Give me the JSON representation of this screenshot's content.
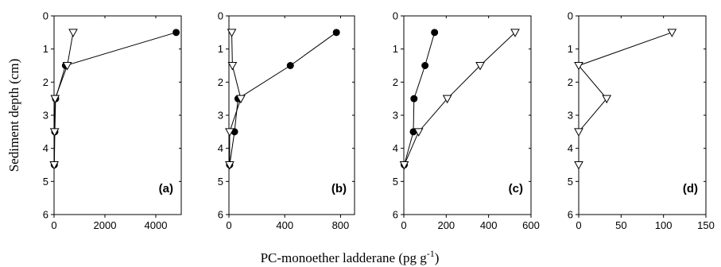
{
  "chart_data": {
    "type": "scatter",
    "xlabel": "PC-monoether ladderane (pg g",
    "xlabel_sup": "-1",
    "xlabel_end": ")",
    "ylabel": "Sediment depth (cm)",
    "ylim": [
      0,
      6
    ],
    "y_ticks": [
      "0",
      "1",
      "2",
      "3",
      "4",
      "5",
      "6"
    ],
    "legend": "none",
    "panels": [
      {
        "label": "(a)",
        "xlim": [
          0,
          5000
        ],
        "x_ticks": [
          0,
          2000,
          4000
        ],
        "series": [
          {
            "marker": "filled-circle",
            "points": [
              [
                4800,
                0.5
              ],
              [
                450,
                1.5
              ],
              [
                60,
                2.5
              ],
              [
                30,
                3.5
              ],
              [
                10,
                4.5
              ]
            ]
          },
          {
            "marker": "open-triangle-down",
            "points": [
              [
                750,
                0.5
              ],
              [
                520,
                1.5
              ],
              [
                40,
                2.5
              ],
              [
                20,
                3.5
              ],
              [
                5,
                4.5
              ]
            ]
          }
        ]
      },
      {
        "label": "(b)",
        "xlim": [
          0,
          900
        ],
        "x_ticks": [
          0,
          400,
          800
        ],
        "series": [
          {
            "marker": "filled-circle",
            "points": [
              [
                770,
                0.5
              ],
              [
                440,
                1.5
              ],
              [
                65,
                2.5
              ],
              [
                40,
                3.5
              ],
              [
                5,
                4.5
              ]
            ]
          },
          {
            "marker": "open-triangle-down",
            "points": [
              [
                20,
                0.5
              ],
              [
                25,
                1.5
              ],
              [
                85,
                2.5
              ],
              [
                5,
                3.5
              ],
              [
                5,
                4.5
              ]
            ]
          }
        ]
      },
      {
        "label": "(c)",
        "xlim": [
          0,
          600
        ],
        "x_ticks": [
          0,
          200,
          400,
          600
        ],
        "series": [
          {
            "marker": "filled-circle",
            "points": [
              [
                145,
                0.5
              ],
              [
                100,
                1.5
              ],
              [
                48,
                2.5
              ],
              [
                45,
                3.5
              ],
              [
                2,
                4.5
              ]
            ]
          },
          {
            "marker": "open-triangle-down",
            "points": [
              [
                525,
                0.5
              ],
              [
                360,
                1.5
              ],
              [
                205,
                2.5
              ],
              [
                70,
                3.5
              ],
              [
                2,
                4.5
              ]
            ]
          }
        ]
      },
      {
        "label": "(d)",
        "xlim": [
          0,
          150
        ],
        "x_ticks": [
          0,
          50,
          100,
          150
        ],
        "series": [
          {
            "marker": "open-triangle-down",
            "points": [
              [
                110,
                0.5
              ],
              [
                0,
                1.5
              ],
              [
                33,
                2.5
              ],
              [
                0,
                3.5
              ],
              [
                0,
                4.5
              ]
            ],
            "connect_points": 4
          }
        ]
      }
    ]
  }
}
